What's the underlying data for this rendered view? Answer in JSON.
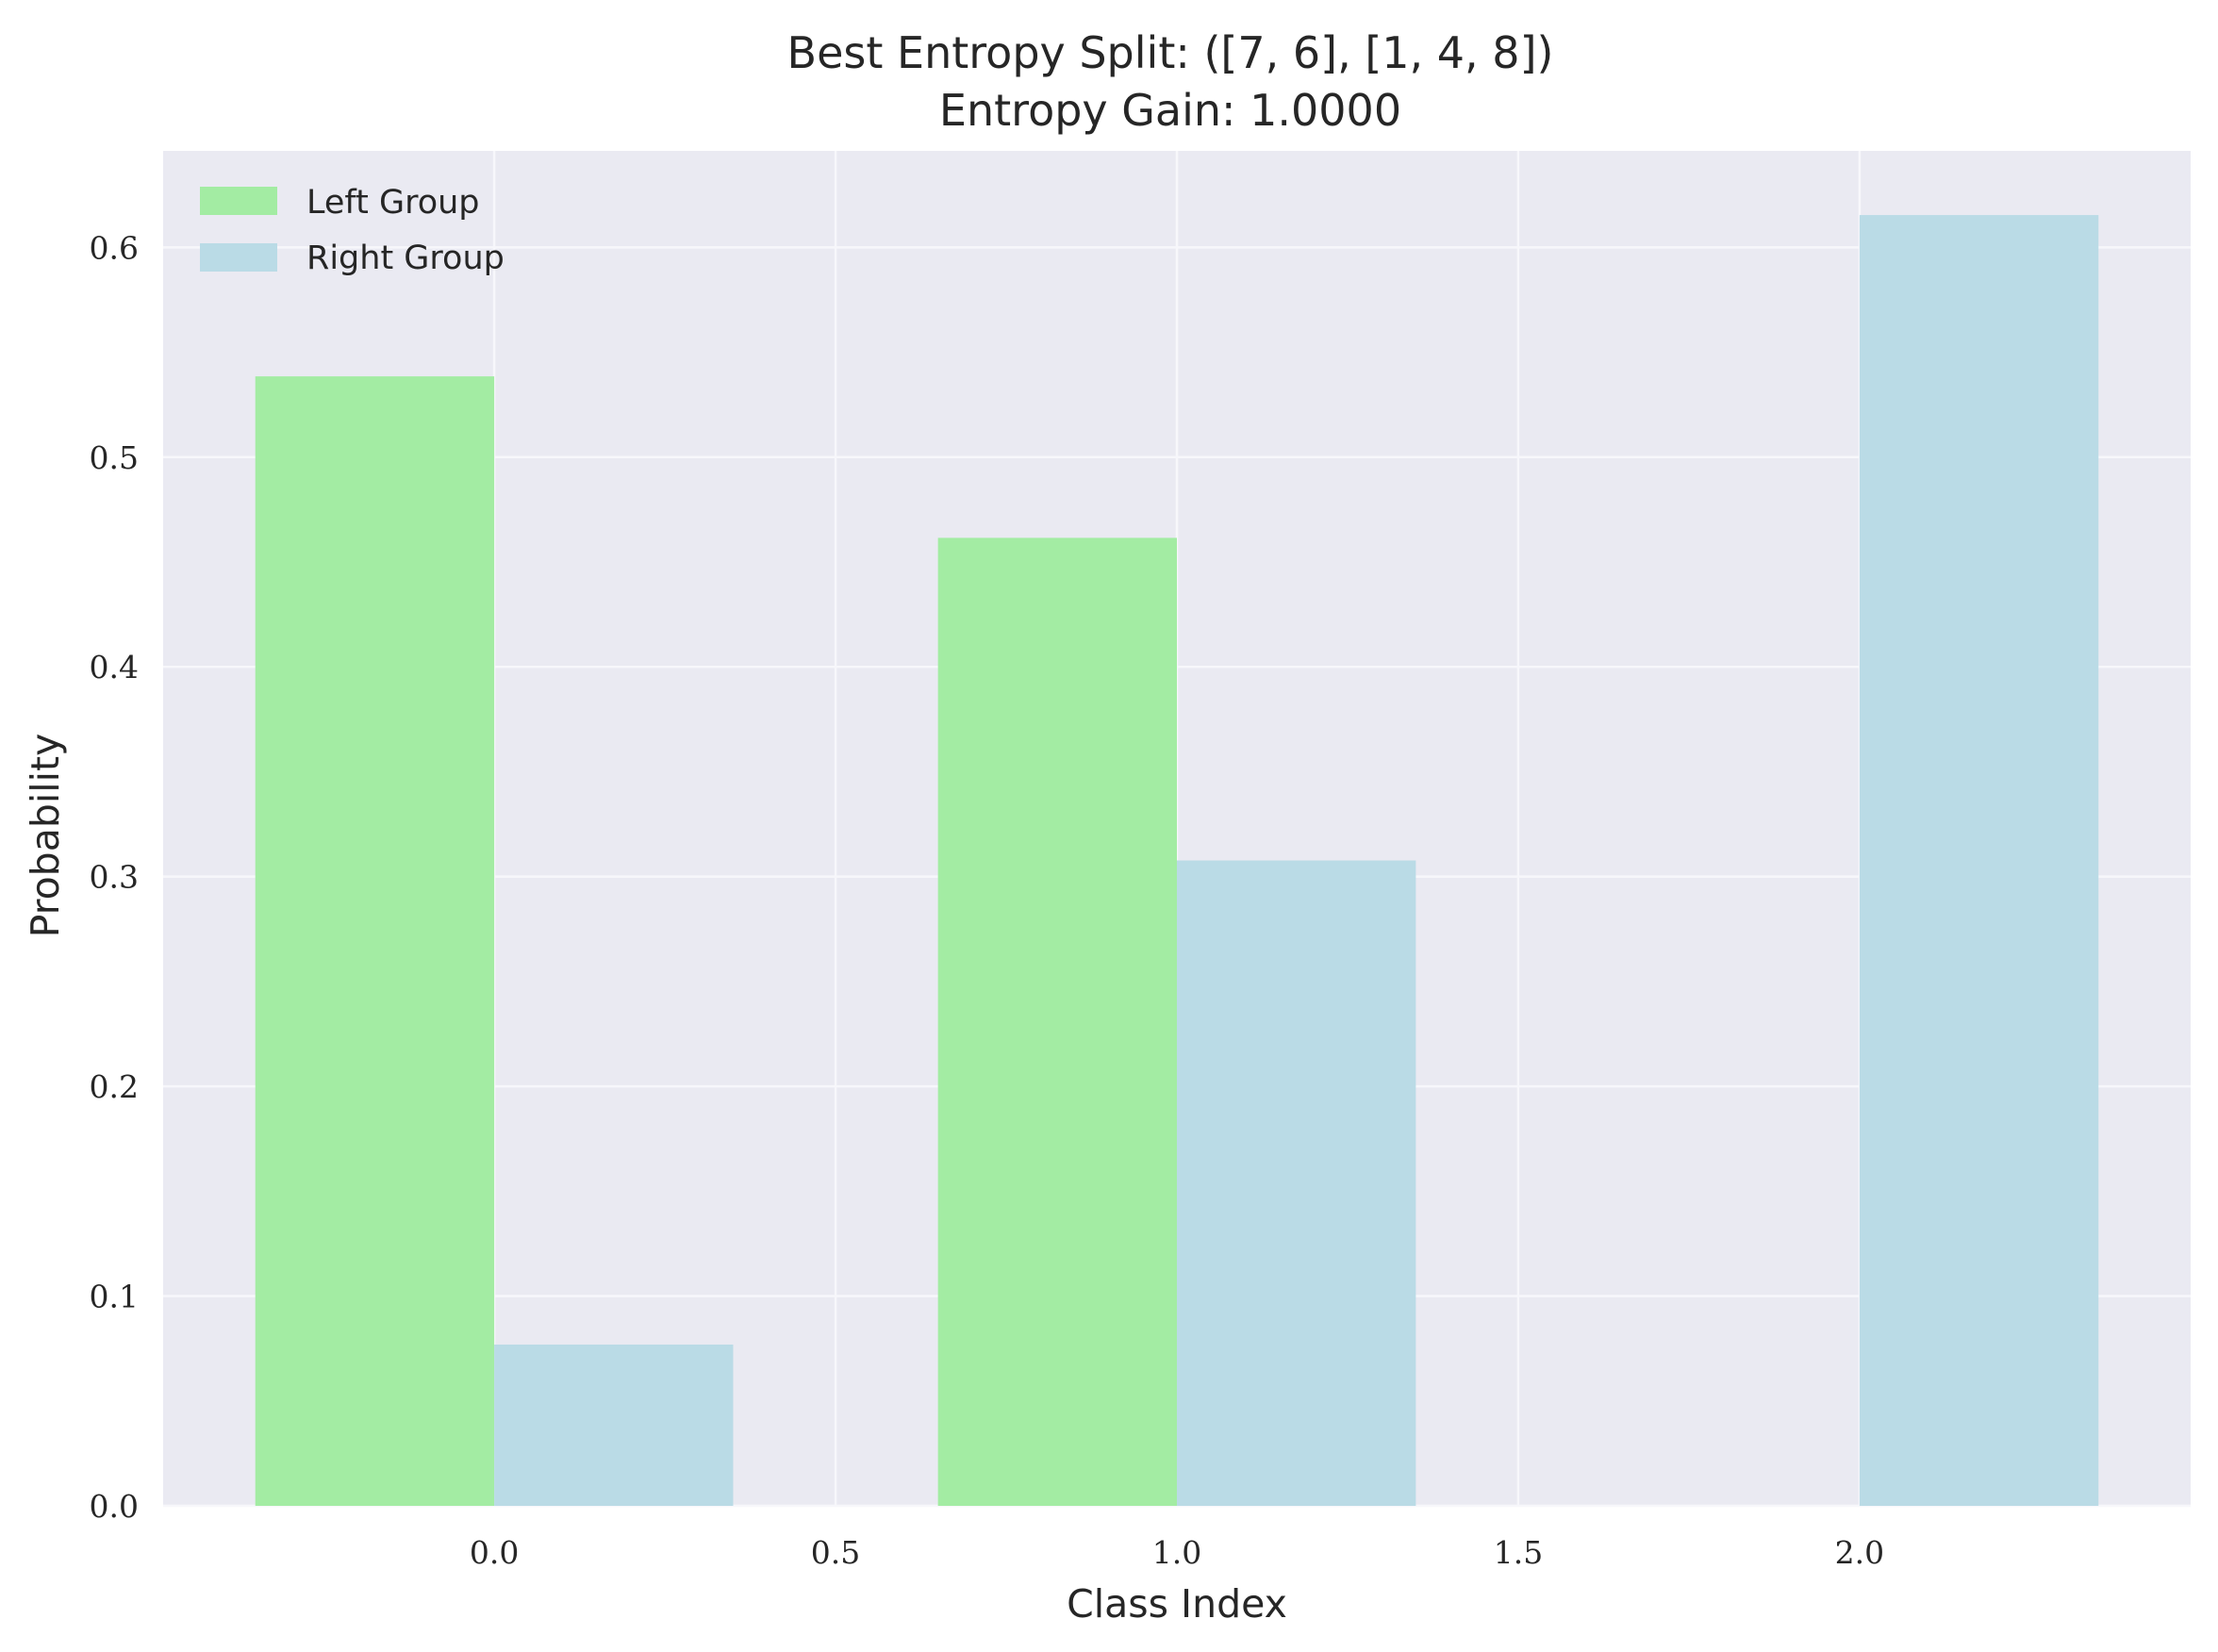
{
  "chart_data": {
    "type": "bar",
    "title": "Best Entropy Split: ([7, 6], [1, 4, 8])",
    "subtitle": "Entropy Gain: 1.0000",
    "xlabel": "Class Index",
    "ylabel": "Probability",
    "xlim": [
      -0.485,
      2.485
    ],
    "ylim": [
      0.0,
      0.646
    ],
    "xticks": [
      "0.0",
      "0.5",
      "1.0",
      "1.5",
      "2.0"
    ],
    "xtick_values": [
      0.0,
      0.5,
      1.0,
      1.5,
      2.0
    ],
    "yticks": [
      "0.0",
      "0.1",
      "0.2",
      "0.3",
      "0.4",
      "0.5",
      "0.6"
    ],
    "ytick_values": [
      0.0,
      0.1,
      0.2,
      0.3,
      0.4,
      0.5,
      0.6
    ],
    "bar_width": 0.35,
    "grid": true,
    "legend_position": "top-left",
    "background_color": "#eaeaf2",
    "series": [
      {
        "name": "Left Group",
        "color": "#a3eca3",
        "x": [
          0,
          1
        ],
        "values": [
          0.5385,
          0.4615
        ],
        "offset": -0.175
      },
      {
        "name": "Right Group",
        "color": "#badbe6",
        "x": [
          0,
          1,
          2
        ],
        "values": [
          0.0769,
          0.3077,
          0.6154
        ],
        "offset": 0.175
      }
    ]
  }
}
